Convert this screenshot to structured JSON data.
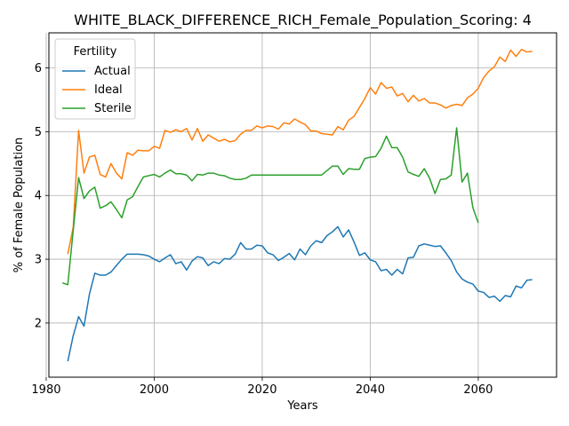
{
  "chart_data": {
    "type": "line",
    "title": "WHITE_BLACK_DIFFERENCE_RICH_Female_Population_Scoring: 4",
    "xlabel": "Years",
    "ylabel": "% of Female Population",
    "xlim": [
      1980.5,
      2074.5
    ],
    "ylim": [
      1.15,
      6.55
    ],
    "xticks": [
      1980,
      2000,
      2020,
      2040,
      2060
    ],
    "yticks": [
      2,
      3,
      4,
      5,
      6
    ],
    "grid": true,
    "legend": {
      "title": "Fertility",
      "placement": "upper-left"
    },
    "series": [
      {
        "name": "Actual",
        "color": "#1f77b4",
        "x": [
          1984,
          1985,
          1986,
          1987,
          1988,
          1989,
          1990,
          1991,
          1992,
          1993,
          1994,
          1995,
          1996,
          1997,
          1998,
          1999,
          2000,
          2001,
          2002,
          2003,
          2004,
          2005,
          2006,
          2007,
          2008,
          2009,
          2010,
          2011,
          2012,
          2013,
          2014,
          2015,
          2016,
          2017,
          2018,
          2019,
          2020,
          2021,
          2022,
          2023,
          2024,
          2025,
          2026,
          2027,
          2028,
          2029,
          2030,
          2031,
          2032,
          2033,
          2034,
          2035,
          2036,
          2037,
          2038,
          2039,
          2040,
          2041,
          2042,
          2043,
          2044,
          2045,
          2046,
          2047,
          2048,
          2049,
          2050,
          2051,
          2052,
          2053,
          2054,
          2055,
          2056,
          2057,
          2058,
          2059,
          2060,
          2061,
          2062,
          2063,
          2064,
          2065,
          2066,
          2067,
          2068,
          2069,
          2070
        ],
        "y": [
          1.4,
          1.8,
          2.1,
          1.95,
          2.45,
          2.78,
          2.75,
          2.75,
          2.8,
          2.9,
          3.0,
          3.08,
          3.08,
          3.08,
          3.07,
          3.05,
          3.0,
          2.96,
          3.02,
          3.07,
          2.93,
          2.96,
          2.83,
          2.97,
          3.04,
          3.02,
          2.9,
          2.96,
          2.93,
          3.01,
          3.0,
          3.08,
          3.26,
          3.16,
          3.16,
          3.22,
          3.21,
          3.1,
          3.07,
          2.98,
          3.03,
          3.09,
          2.99,
          3.16,
          3.07,
          3.21,
          3.29,
          3.26,
          3.37,
          3.43,
          3.51,
          3.35,
          3.46,
          3.27,
          3.06,
          3.1,
          2.99,
          2.96,
          2.82,
          2.84,
          2.75,
          2.84,
          2.77,
          3.02,
          3.03,
          3.21,
          3.24,
          3.22,
          3.2,
          3.21,
          3.1,
          2.98,
          2.8,
          2.69,
          2.64,
          2.61,
          2.5,
          2.48,
          2.4,
          2.42,
          2.34,
          2.43,
          2.41,
          2.58,
          2.55,
          2.67,
          2.68
        ]
      },
      {
        "name": "Ideal",
        "color": "#ff7f0e",
        "x": [
          1984,
          1985,
          1986,
          1987,
          1988,
          1989,
          1990,
          1991,
          1992,
          1993,
          1994,
          1995,
          1996,
          1997,
          1998,
          1999,
          2000,
          2001,
          2002,
          2003,
          2004,
          2005,
          2006,
          2007,
          2008,
          2009,
          2010,
          2011,
          2012,
          2013,
          2014,
          2015,
          2016,
          2017,
          2018,
          2019,
          2020,
          2021,
          2022,
          2023,
          2024,
          2025,
          2026,
          2027,
          2028,
          2029,
          2030,
          2031,
          2032,
          2033,
          2034,
          2035,
          2036,
          2037,
          2038,
          2039,
          2040,
          2041,
          2042,
          2043,
          2044,
          2045,
          2046,
          2047,
          2048,
          2049,
          2050,
          2051,
          2052,
          2053,
          2054,
          2055,
          2056,
          2057,
          2058,
          2059,
          2060,
          2061,
          2062,
          2063,
          2064,
          2065,
          2066,
          2067,
          2068,
          2069,
          2070
        ],
        "y": [
          3.08,
          3.5,
          5.02,
          4.35,
          4.6,
          4.63,
          4.33,
          4.29,
          4.5,
          4.35,
          4.26,
          4.67,
          4.63,
          4.71,
          4.7,
          4.7,
          4.77,
          4.74,
          5.02,
          4.99,
          5.03,
          5.0,
          5.05,
          4.87,
          5.05,
          4.85,
          4.95,
          4.9,
          4.85,
          4.88,
          4.84,
          4.86,
          4.96,
          5.02,
          5.02,
          5.09,
          5.06,
          5.09,
          5.08,
          5.04,
          5.14,
          5.12,
          5.2,
          5.15,
          5.11,
          5.01,
          5.01,
          4.97,
          4.96,
          4.95,
          5.08,
          5.03,
          5.18,
          5.24,
          5.38,
          5.52,
          5.69,
          5.59,
          5.77,
          5.68,
          5.7,
          5.56,
          5.6,
          5.47,
          5.57,
          5.48,
          5.52,
          5.45,
          5.45,
          5.42,
          5.37,
          5.41,
          5.43,
          5.41,
          5.53,
          5.59,
          5.68,
          5.85,
          5.95,
          6.02,
          6.17,
          6.1,
          6.28,
          6.18,
          6.29,
          6.25,
          6.26
        ]
      },
      {
        "name": "Sterile",
        "color": "#2ca02c",
        "x": [
          1983,
          1984,
          1985,
          1986,
          1987,
          1988,
          1989,
          1990,
          1991,
          1992,
          1993,
          1994,
          1995,
          1996,
          1997,
          1998,
          1999,
          2000,
          2001,
          2002,
          2003,
          2004,
          2005,
          2006,
          2007,
          2008,
          2009,
          2010,
          2011,
          2012,
          2013,
          2014,
          2015,
          2016,
          2017,
          2018,
          2019,
          2020,
          2021,
          2022,
          2023,
          2024,
          2025,
          2026,
          2027,
          2028,
          2029,
          2030,
          2031,
          2032,
          2033,
          2034,
          2035,
          2036,
          2037,
          2038,
          2039,
          2040,
          2041,
          2042,
          2043,
          2044,
          2045,
          2046,
          2047,
          2048,
          2049,
          2050,
          2051,
          2052,
          2053,
          2054,
          2055,
          2056,
          2057,
          2058,
          2059,
          2060
        ],
        "y": [
          2.63,
          2.6,
          3.45,
          4.28,
          3.95,
          4.07,
          4.13,
          3.8,
          3.84,
          3.9,
          3.78,
          3.65,
          3.93,
          3.98,
          4.14,
          4.29,
          4.31,
          4.33,
          4.29,
          4.35,
          4.4,
          4.34,
          4.34,
          4.32,
          4.23,
          4.33,
          4.32,
          4.35,
          4.35,
          4.32,
          4.31,
          4.27,
          4.25,
          4.25,
          4.27,
          4.32,
          4.32,
          4.32,
          4.32,
          4.32,
          4.32,
          4.32,
          4.32,
          4.32,
          4.32,
          4.32,
          4.32,
          4.32,
          4.32,
          4.39,
          4.46,
          4.46,
          4.33,
          4.42,
          4.41,
          4.41,
          4.58,
          4.6,
          4.61,
          4.74,
          4.93,
          4.75,
          4.75,
          4.6,
          4.37,
          4.33,
          4.3,
          4.42,
          4.27,
          4.03,
          4.25,
          4.26,
          4.32,
          5.06,
          4.21,
          4.35,
          3.81,
          3.57
        ]
      }
    ]
  }
}
